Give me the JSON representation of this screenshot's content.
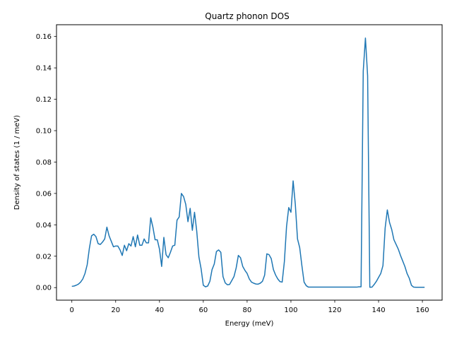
{
  "chart_data": {
    "type": "line",
    "title": "Quartz phonon DOS",
    "xlabel": "Energy (meV)",
    "ylabel": "Density of states (1 / meV)",
    "xlim": [
      -7,
      169
    ],
    "ylim": [
      -0.008,
      0.1675
    ],
    "xticks": [
      0,
      20,
      40,
      60,
      80,
      100,
      120,
      140,
      160
    ],
    "yticks": [
      0.0,
      0.02,
      0.04,
      0.06,
      0.08,
      0.1,
      0.12,
      0.14,
      0.16
    ],
    "ytick_labels": [
      "0.00",
      "0.02",
      "0.04",
      "0.06",
      "0.08",
      "0.10",
      "0.12",
      "0.14",
      "0.16"
    ],
    "grid": false,
    "color": "#1f77b4",
    "series": [
      {
        "x": [
          0,
          1,
          2,
          3,
          4,
          5,
          6,
          7,
          8,
          9,
          10,
          11,
          12,
          13,
          14,
          15,
          16,
          17,
          18,
          19,
          20,
          21,
          22,
          23,
          24,
          25,
          26,
          27,
          28,
          29,
          30,
          31,
          32,
          33,
          34,
          35,
          36,
          37,
          38,
          39,
          40,
          41,
          42,
          43,
          44,
          45,
          46,
          47,
          48,
          49,
          50,
          51,
          52,
          53,
          54,
          55,
          56,
          57,
          58,
          59,
          60,
          61,
          62,
          63,
          64,
          65,
          66,
          67,
          68,
          69,
          70,
          71,
          72,
          73,
          74,
          75,
          76,
          77,
          78,
          79,
          80,
          81,
          82,
          83,
          84,
          85,
          86,
          87,
          88,
          89,
          90,
          91,
          92,
          93,
          94,
          95,
          96,
          97,
          98,
          99,
          100,
          101,
          102,
          103,
          104,
          105,
          106,
          107,
          108,
          110,
          115,
          120,
          125,
          130,
          131,
          132,
          133,
          134,
          135,
          136,
          137,
          138,
          139,
          140,
          141,
          142,
          143,
          144,
          145,
          146,
          147,
          148,
          149,
          150,
          151,
          152,
          153,
          154,
          155,
          156,
          157,
          158,
          159,
          160,
          161
        ],
        "y": [
          0.0008,
          0.001,
          0.0015,
          0.0022,
          0.0035,
          0.0055,
          0.009,
          0.0145,
          0.025,
          0.033,
          0.034,
          0.0325,
          0.028,
          0.0275,
          0.029,
          0.031,
          0.0385,
          0.033,
          0.0295,
          0.026,
          0.0265,
          0.0265,
          0.024,
          0.0205,
          0.027,
          0.0235,
          0.028,
          0.0265,
          0.0325,
          0.026,
          0.0335,
          0.027,
          0.027,
          0.031,
          0.0285,
          0.0285,
          0.0445,
          0.0385,
          0.0305,
          0.0305,
          0.0245,
          0.0135,
          0.032,
          0.021,
          0.019,
          0.0225,
          0.0265,
          0.027,
          0.043,
          0.045,
          0.06,
          0.058,
          0.053,
          0.042,
          0.0505,
          0.0365,
          0.048,
          0.036,
          0.0195,
          0.012,
          0.0015,
          0.0005,
          0.001,
          0.004,
          0.0115,
          0.015,
          0.023,
          0.024,
          0.0225,
          0.007,
          0.003,
          0.0018,
          0.002,
          0.0045,
          0.007,
          0.0125,
          0.0205,
          0.019,
          0.0135,
          0.011,
          0.009,
          0.0055,
          0.0035,
          0.0028,
          0.0023,
          0.0022,
          0.0028,
          0.004,
          0.008,
          0.0215,
          0.021,
          0.0185,
          0.0115,
          0.008,
          0.0055,
          0.0038,
          0.0035,
          0.0165,
          0.039,
          0.051,
          0.048,
          0.068,
          0.053,
          0.031,
          0.0255,
          0.014,
          0.0035,
          0.0012,
          0.0003,
          0.0003,
          0.0003,
          0.0003,
          0.0003,
          0.0003,
          0.0005,
          0.0005,
          0.138,
          0.159,
          0.135,
          0.0002,
          0.0003,
          0.002,
          0.004,
          0.0065,
          0.009,
          0.014,
          0.038,
          0.0495,
          0.0415,
          0.037,
          0.0305,
          0.0275,
          0.0245,
          0.0205,
          0.017,
          0.0135,
          0.009,
          0.006,
          0.0015,
          0.0003,
          0.0002,
          0.0002,
          0.0002,
          0.0002,
          0.0002
        ]
      }
    ]
  }
}
